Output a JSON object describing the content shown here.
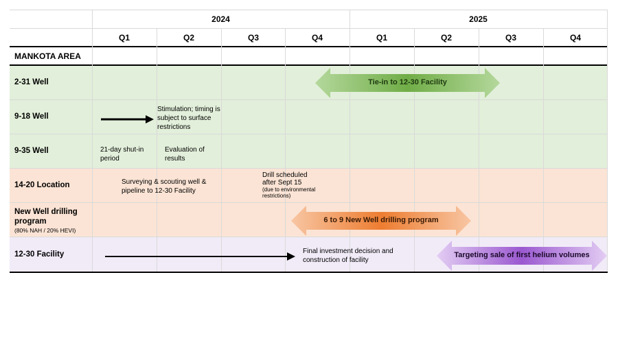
{
  "header": {
    "years": [
      "2024",
      "2025"
    ],
    "quarters": [
      "Q1",
      "Q2",
      "Q3",
      "Q4",
      "Q1",
      "Q2",
      "Q3",
      "Q4"
    ]
  },
  "section_title": "MANKOTA AREA",
  "rows": [
    {
      "label": "2-31 Well",
      "color": "#e2efda"
    },
    {
      "label": "9-18 Well",
      "color": "#e2efda"
    },
    {
      "label": "9-35 Well",
      "color": "#e2efda"
    },
    {
      "label": "14-20 Location",
      "color": "#fbe4d5"
    },
    {
      "label": "New Well drilling program",
      "sublabel": "(80% NAH / 20% HEVI)",
      "color": "#fbe4d5"
    },
    {
      "label": "12-30 Facility",
      "color": "#f1ebf8"
    }
  ],
  "notes": {
    "stimulation": "Stimulation; timing is subject to surface restrictions",
    "shut_in": "21-day shut-in period",
    "evaluation": "Evaluation of results",
    "surveying": "Surveying & scouting well & pipeline to 12-30 Facility",
    "drill_main": "Drill scheduled after Sept 15",
    "drill_sub": "(due to environmental restrictions)",
    "fid": "Final investment decision and construction of facility"
  },
  "bars": {
    "tie_in": "Tie-in to 12-30 Facility",
    "drilling": "6 to 9 New Well drilling program",
    "helium": "Targeting sale of first helium volumes"
  },
  "colors": {
    "green_row": "#e2efda",
    "orange_row": "#fbe4d5",
    "purple_row": "#f1ebf8",
    "green_arrow": "#70ad47",
    "orange_arrow": "#ed7d31",
    "purple_arrow": "#9b59d0"
  }
}
